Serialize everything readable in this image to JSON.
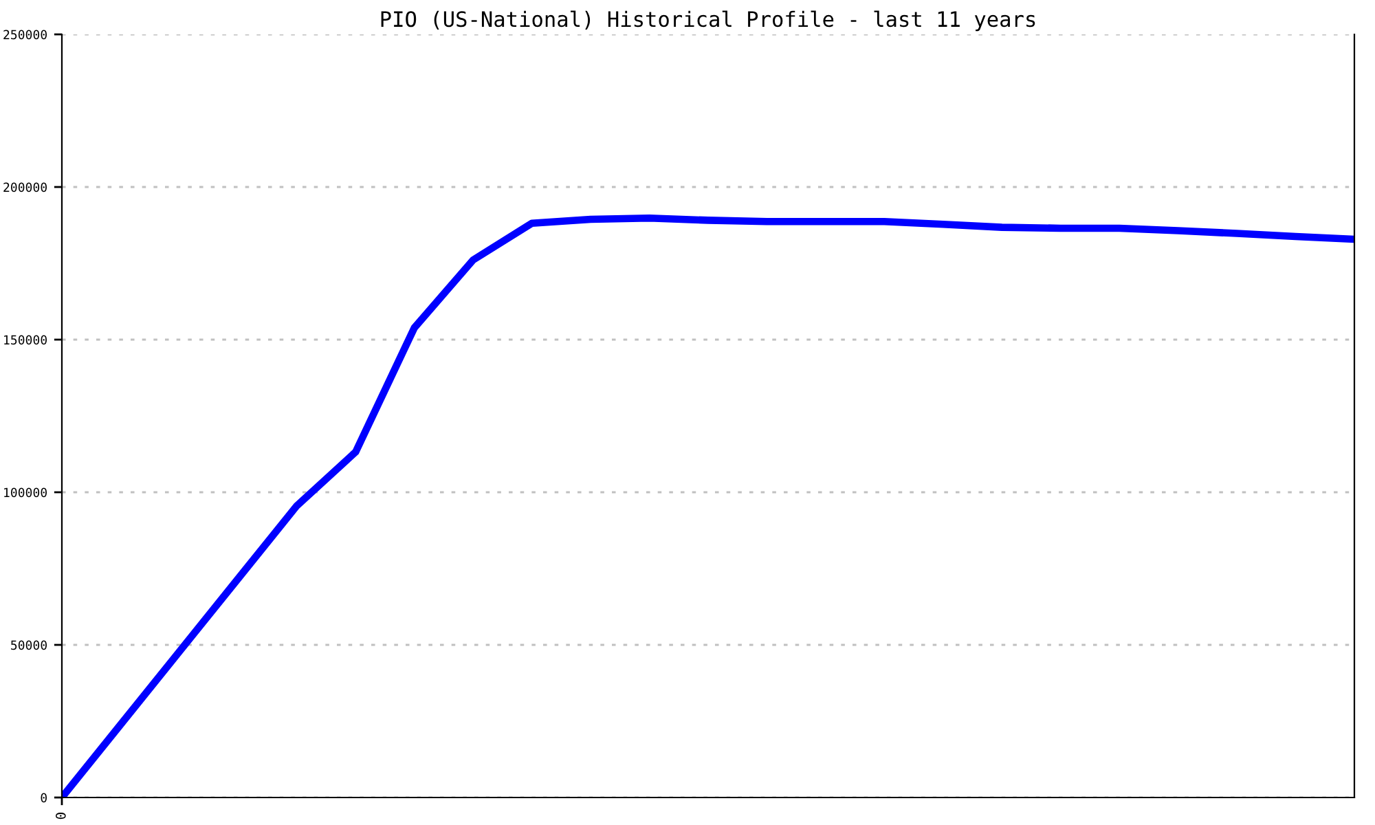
{
  "chart_data": {
    "type": "line",
    "title": "PIO (US-National) Historical Profile - last 11 years",
    "categories": [
      "0",
      null,
      null,
      null,
      null,
      null,
      null,
      null,
      null,
      null,
      null,
      null,
      null,
      null,
      null,
      null,
      null,
      null,
      null,
      null,
      null,
      null,
      null
    ],
    "series": [
      {
        "color": "#0000ff",
        "values": [
          0,
          23900,
          47800,
          71700,
          95600,
          113200,
          153900,
          176100,
          188100,
          189400,
          189800,
          189100,
          188700,
          188700,
          188700,
          187800,
          186800,
          186500,
          186500,
          185700,
          184800,
          183800,
          182900
        ]
      }
    ],
    "ylim": [
      0,
      250000
    ],
    "yticks": [
      0,
      50000,
      100000,
      150000,
      200000,
      250000
    ],
    "grid": "y",
    "legend": false,
    "marker": "none",
    "line_style": "solid"
  }
}
